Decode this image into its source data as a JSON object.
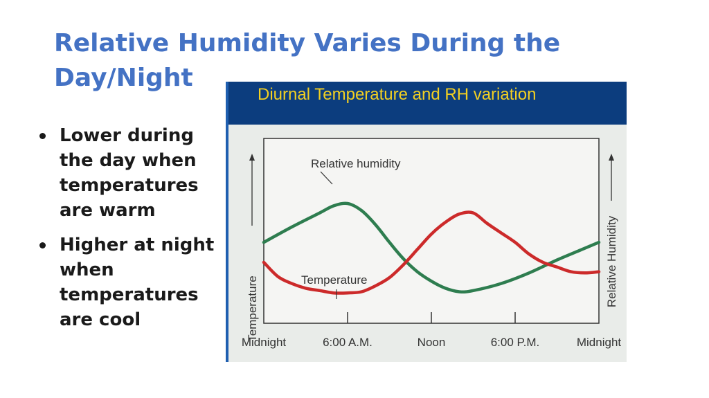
{
  "slide": {
    "title": "Relative Humidity Varies During the Day/Night",
    "bullets": [
      "Lower during the day when temperatures are warm",
      "Higher at night when temperatures are cool"
    ]
  },
  "chart_data": {
    "type": "line",
    "title": "Diurnal Temperature and RH variation",
    "xlabel": "",
    "ylabel_left": "Temperature",
    "ylabel_right": "Relative Humidity",
    "x_ticks": [
      "Midnight",
      "6:00 A.M.",
      "Noon",
      "6:00 P.M.",
      "Midnight"
    ],
    "x_range_hours": [
      0,
      24
    ],
    "y_range": [
      0,
      100
    ],
    "grid": false,
    "legend": "none",
    "series": [
      {
        "name": "Relative humidity",
        "color": "#2e7d4f",
        "points": [
          [
            0,
            47
          ],
          [
            2,
            60
          ],
          [
            4,
            72
          ],
          [
            5,
            78
          ],
          [
            6,
            80
          ],
          [
            7,
            74
          ],
          [
            8,
            62
          ],
          [
            9,
            47
          ],
          [
            10,
            33
          ],
          [
            11,
            22
          ],
          [
            12,
            14
          ],
          [
            13,
            8
          ],
          [
            14,
            5
          ],
          [
            15,
            6
          ],
          [
            17,
            12
          ],
          [
            19,
            21
          ],
          [
            21,
            32
          ],
          [
            23,
            42
          ],
          [
            24,
            47
          ]
        ]
      },
      {
        "name": "Temperature",
        "color": "#cc2a2a",
        "points": [
          [
            0,
            30
          ],
          [
            1,
            18
          ],
          [
            2,
            12
          ],
          [
            3,
            8
          ],
          [
            4,
            6
          ],
          [
            5,
            4
          ],
          [
            6,
            4
          ],
          [
            7,
            5
          ],
          [
            8,
            10
          ],
          [
            9,
            17
          ],
          [
            10,
            28
          ],
          [
            11,
            41
          ],
          [
            12,
            54
          ],
          [
            13,
            64
          ],
          [
            14,
            71
          ],
          [
            15,
            72
          ],
          [
            16,
            63
          ],
          [
            17,
            55
          ],
          [
            18,
            47
          ],
          [
            19,
            37
          ],
          [
            20,
            30
          ],
          [
            21,
            26
          ],
          [
            22,
            22
          ],
          [
            23,
            21
          ],
          [
            24,
            22
          ]
        ]
      }
    ],
    "annotations": [
      "Relative humidity",
      "Temperature"
    ]
  }
}
